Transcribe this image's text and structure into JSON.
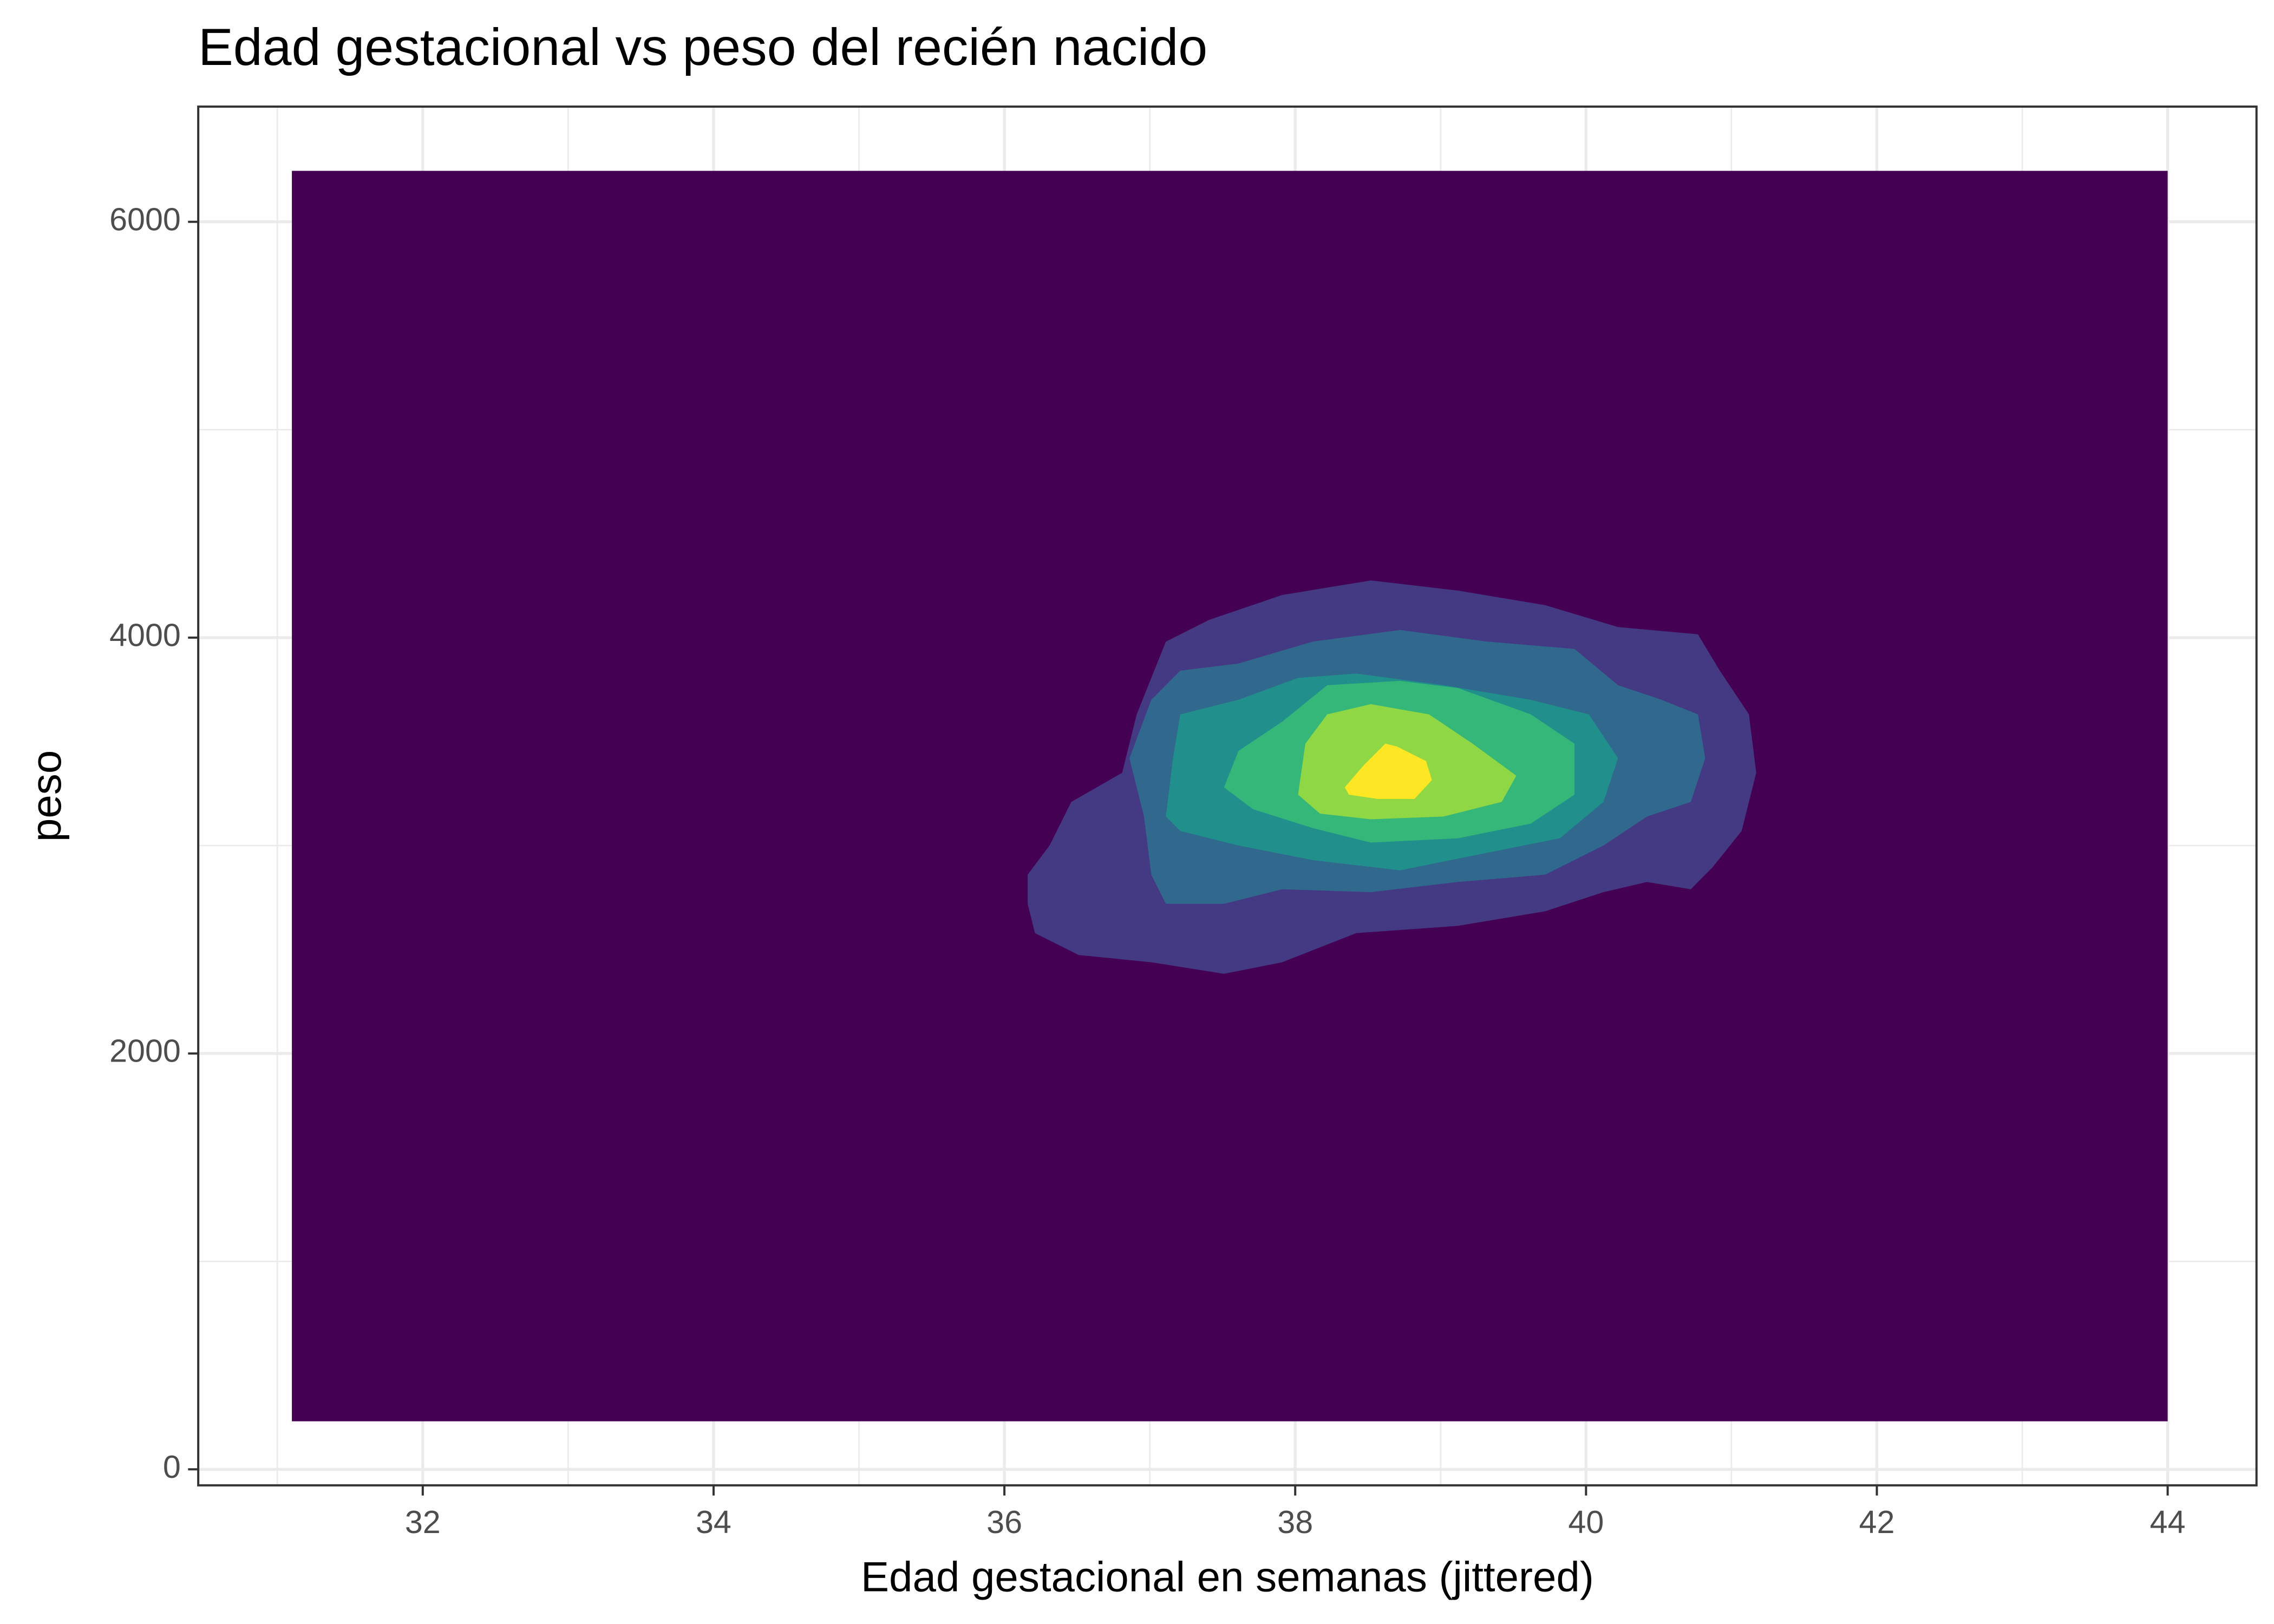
{
  "chart_data": {
    "type": "density_2d_filled",
    "title": "Edad gestacional vs peso del recién nacido",
    "x_label": "Edad gestacional en semanas (jittered)",
    "y_label": "peso",
    "xlim": [
      30.456,
      44.611
    ],
    "ylim": [
      -77,
      6554
    ],
    "xticks": [
      32,
      34,
      36,
      38,
      40,
      42,
      44
    ],
    "yticks": [
      0,
      2000,
      4000,
      6000
    ],
    "x_minor_ticks": [
      31,
      33,
      35,
      37,
      39,
      41,
      43
    ],
    "y_minor_ticks": [
      1000,
      3000,
      5000
    ],
    "grid": true,
    "background_region": {
      "color": "#440154",
      "xlim": [
        31.1,
        44
      ],
      "ylim": [
        231,
        6245
      ]
    },
    "contours": [
      {
        "color": "#443983",
        "x": [
          36.16,
          36.31,
          36.46,
          36.81,
          36.91,
          37.11,
          37.41,
          37.91,
          38.52,
          39.12,
          39.72,
          40.22,
          40.77,
          40.92,
          41.12,
          41.17,
          41.07,
          40.87,
          40.72,
          40.42,
          40.12,
          39.72,
          39.12,
          38.42,
          37.91,
          37.51,
          37.01,
          36.51,
          36.21,
          36.16
        ],
        "y": [
          2860,
          3000,
          3210,
          3350,
          3631,
          3981,
          4086,
          4205,
          4275,
          4226,
          4156,
          4051,
          4016,
          3841,
          3631,
          3350,
          3070,
          2895,
          2790,
          2825,
          2776,
          2684,
          2614,
          2579,
          2439,
          2383,
          2439,
          2474,
          2579,
          2720
        ]
      },
      {
        "color": "#31688e",
        "x": [
          37.01,
          36.96,
          36.86,
          37.01,
          37.21,
          37.61,
          38.12,
          38.72,
          39.32,
          39.92,
          40.22,
          40.52,
          40.77,
          40.82,
          40.72,
          40.42,
          40.12,
          39.72,
          39.12,
          38.52,
          37.91,
          37.51,
          37.11
        ],
        "y": [
          2860,
          3140,
          3420,
          3701,
          3841,
          3876,
          3981,
          4037,
          3981,
          3946,
          3771,
          3701,
          3631,
          3420,
          3210,
          3140,
          3000,
          2860,
          2825,
          2776,
          2790,
          2720,
          2720
        ]
      },
      {
        "color": "#21908c",
        "x": [
          37.11,
          37.16,
          37.21,
          37.61,
          38.02,
          38.42,
          39.02,
          39.62,
          40.02,
          40.22,
          40.12,
          39.82,
          39.32,
          38.72,
          38.12,
          37.61,
          37.21
        ],
        "y": [
          3140,
          3420,
          3631,
          3701,
          3806,
          3827,
          3771,
          3701,
          3631,
          3420,
          3210,
          3035,
          2965,
          2881,
          2930,
          3000,
          3070
        ]
      },
      {
        "color": "#35b779",
        "x": [
          37.51,
          37.61,
          37.91,
          38.22,
          38.72,
          39.12,
          39.62,
          39.92,
          39.92,
          39.62,
          39.12,
          38.52,
          38.12,
          37.71
        ],
        "y": [
          3280,
          3455,
          3596,
          3771,
          3792,
          3757,
          3631,
          3490,
          3245,
          3105,
          3035,
          3014,
          3084,
          3175
        ]
      },
      {
        "color": "#8fd744",
        "x": [
          38.02,
          38.07,
          38.22,
          38.52,
          38.92,
          39.22,
          39.52,
          39.42,
          39.02,
          38.52,
          38.17
        ],
        "y": [
          3245,
          3490,
          3631,
          3680,
          3631,
          3490,
          3336,
          3210,
          3140,
          3126,
          3154
        ]
      },
      {
        "color": "#fde725",
        "x": [
          38.34,
          38.47,
          38.62,
          38.7,
          38.9,
          38.94,
          38.82,
          38.57,
          38.37
        ],
        "y": [
          3280,
          3385,
          3490,
          3476,
          3406,
          3315,
          3224,
          3224,
          3245
        ]
      }
    ]
  }
}
